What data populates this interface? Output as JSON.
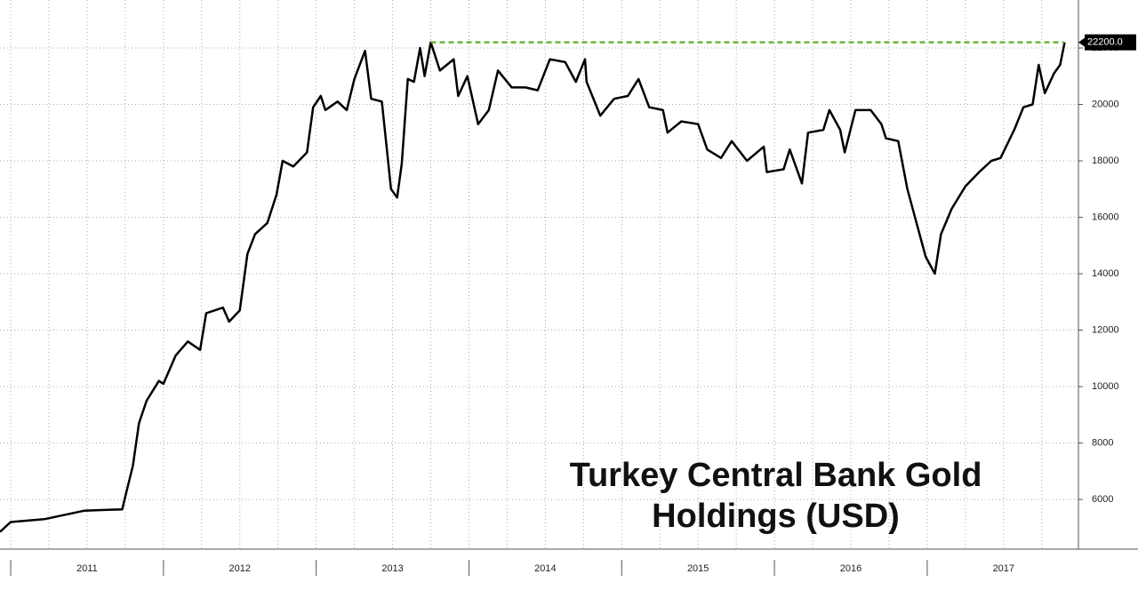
{
  "chart_data": {
    "type": "line",
    "title": "Turkey Central Bank Gold Holdings (USD)",
    "x": [
      2010.93,
      2011.0,
      2011.22,
      2011.48,
      2011.73,
      2011.75,
      2011.8,
      2011.84,
      2011.89,
      2011.97,
      2012.0,
      2012.08,
      2012.16,
      2012.24,
      2012.28,
      2012.39,
      2012.43,
      2012.5,
      2012.55,
      2012.6,
      2012.68,
      2012.74,
      2012.78,
      2012.85,
      2012.94,
      2012.98,
      2013.03,
      2013.06,
      2013.14,
      2013.2,
      2013.25,
      2013.32,
      2013.36,
      2013.43,
      2013.49,
      2013.53,
      2013.56,
      2013.6,
      2013.64,
      2013.68,
      2013.71,
      2013.75,
      2013.81,
      2013.9,
      2013.93,
      2013.99,
      2014.06,
      2014.13,
      2014.19,
      2014.28,
      2014.37,
      2014.45,
      2014.53,
      2014.63,
      2014.7,
      2014.76,
      2014.77,
      2014.86,
      2014.95,
      2015.04,
      2015.11,
      2015.18,
      2015.27,
      2015.3,
      2015.39,
      2015.5,
      2015.56,
      2015.65,
      2015.72,
      2015.82,
      2015.93,
      2015.95,
      2016.06,
      2016.1,
      2016.18,
      2016.22,
      2016.32,
      2016.36,
      2016.43,
      2016.46,
      2016.53,
      2016.63,
      2016.7,
      2016.73,
      2016.81,
      2016.87,
      2016.93,
      2016.99,
      2017.05,
      2017.09,
      2017.16,
      2017.25,
      2017.34,
      2017.42,
      2017.48,
      2017.57,
      2017.63,
      2017.69,
      2017.73,
      2017.77,
      2017.83,
      2017.87,
      2017.9
    ],
    "series": [
      {
        "color": "#000000",
        "values": [
          4850,
          5200,
          5300,
          5600,
          5650,
          6100,
          7200,
          8700,
          9500,
          10200,
          10100,
          11100,
          11600,
          11300,
          12600,
          12800,
          12300,
          12700,
          14700,
          15400,
          15800,
          16800,
          18000,
          17800,
          18300,
          19900,
          20300,
          19800,
          20100,
          19800,
          20900,
          21900,
          20200,
          20100,
          17000,
          16700,
          17900,
          20900,
          20800,
          22000,
          21000,
          22200,
          21200,
          21600,
          20300,
          21000,
          19300,
          19800,
          21200,
          20600,
          20600,
          20500,
          21600,
          21500,
          20800,
          21600,
          20800,
          19600,
          20200,
          20300,
          20900,
          19900,
          19800,
          19000,
          19400,
          19300,
          18400,
          18100,
          18700,
          18000,
          18500,
          17600,
          17700,
          18400,
          17200,
          19000,
          19100,
          19800,
          19100,
          18300,
          19800,
          19800,
          19300,
          18800,
          18700,
          17000,
          15800,
          14600,
          14000,
          15400,
          16300,
          17100,
          17600,
          18000,
          18100,
          19100,
          19900,
          20000,
          21400,
          20400,
          21100,
          21400,
          22200
        ]
      }
    ],
    "xlim": [
      2010.93,
      2017.99
    ],
    "xticks": [
      {
        "value": 2011,
        "label": "2011"
      },
      {
        "value": 2012,
        "label": "2012"
      },
      {
        "value": 2013,
        "label": "2013"
      },
      {
        "value": 2014,
        "label": "2014"
      },
      {
        "value": 2015,
        "label": "2015"
      },
      {
        "value": 2016,
        "label": "2016"
      },
      {
        "value": 2017,
        "label": "2017"
      }
    ],
    "ylim": [
      4240,
      23700
    ],
    "yticks": [
      6000,
      8000,
      10000,
      12000,
      14000,
      16000,
      18000,
      20000,
      22000
    ],
    "grid": true,
    "annotation": {
      "value": 22200,
      "label": "22200.0",
      "x_start": 2013.75,
      "color": "#6ab536"
    }
  }
}
